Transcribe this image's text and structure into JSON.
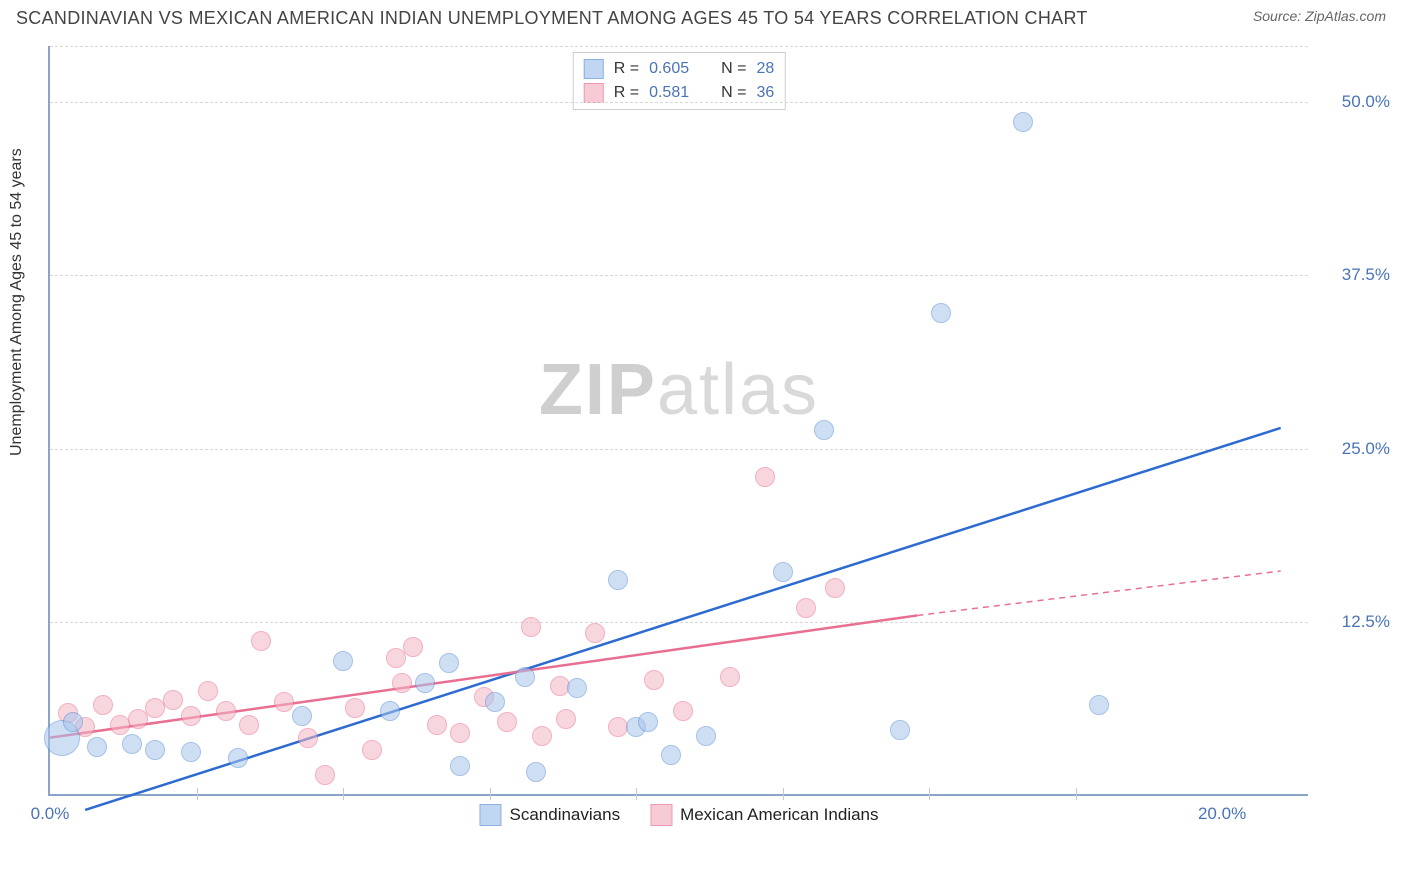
{
  "title": "SCANDINAVIAN VS MEXICAN AMERICAN INDIAN UNEMPLOYMENT AMONG AGES 45 TO 54 YEARS CORRELATION CHART",
  "source": "Source: ZipAtlas.com",
  "watermark_bold": "ZIP",
  "watermark_light": "atlas",
  "chart": {
    "type": "scatter",
    "ylabel": "Unemployment Among Ages 45 to 54 years",
    "background_color": "#ffffff",
    "grid_color": "#d8d8d8",
    "axis_color": "#8aa4c8",
    "tick_font_color": "#4a74b8",
    "tick_fontsize": 17,
    "label_fontsize": 16,
    "title_fontsize": 18,
    "xlim": [
      0,
      21.5
    ],
    "ylim": [
      0,
      54
    ],
    "xticks": [
      {
        "pos": 0.0,
        "label": "0.0%"
      },
      {
        "pos": 20.0,
        "label": "20.0%"
      }
    ],
    "xgrid_ticks": [
      2.5,
      5.0,
      7.5,
      10.0,
      12.5,
      15.0,
      17.5
    ],
    "yticks": [
      {
        "pos": 12.5,
        "label": "12.5%"
      },
      {
        "pos": 25.0,
        "label": "25.0%"
      },
      {
        "pos": 37.5,
        "label": "37.5%"
      },
      {
        "pos": 50.0,
        "label": "50.0%"
      }
    ],
    "series": [
      {
        "name": "Scandinavians",
        "fill": "#a8c5eb",
        "stroke": "#5b8fd6",
        "fill_opacity": 0.55,
        "line_color": "#2e6bd0",
        "line_width": 2.5,
        "marker_r": 10,
        "R": "0.605",
        "N": "28",
        "trend": {
          "x1": 0.6,
          "y1": -1.0,
          "x2": 21.0,
          "y2": 26.5,
          "dash_from_x": 21.0
        },
        "points": [
          {
            "x": 0.2,
            "y": 4.0,
            "r": 18
          },
          {
            "x": 0.4,
            "y": 5.2
          },
          {
            "x": 0.8,
            "y": 3.4
          },
          {
            "x": 1.4,
            "y": 3.6
          },
          {
            "x": 1.8,
            "y": 3.2
          },
          {
            "x": 2.4,
            "y": 3.0
          },
          {
            "x": 3.2,
            "y": 2.6
          },
          {
            "x": 4.3,
            "y": 5.6
          },
          {
            "x": 5.0,
            "y": 9.6
          },
          {
            "x": 5.8,
            "y": 6.0
          },
          {
            "x": 6.4,
            "y": 8.0
          },
          {
            "x": 7.0,
            "y": 2.0
          },
          {
            "x": 7.6,
            "y": 6.6
          },
          {
            "x": 8.1,
            "y": 8.4
          },
          {
            "x": 8.3,
            "y": 1.6
          },
          {
            "x": 9.0,
            "y": 7.6
          },
          {
            "x": 9.7,
            "y": 15.4
          },
          {
            "x": 10.0,
            "y": 4.8
          },
          {
            "x": 10.6,
            "y": 2.8
          },
          {
            "x": 11.2,
            "y": 4.2
          },
          {
            "x": 12.5,
            "y": 16.0
          },
          {
            "x": 13.2,
            "y": 26.2
          },
          {
            "x": 14.5,
            "y": 4.6
          },
          {
            "x": 15.2,
            "y": 34.6
          },
          {
            "x": 16.6,
            "y": 48.4
          },
          {
            "x": 17.9,
            "y": 6.4
          },
          {
            "x": 10.2,
            "y": 5.2
          },
          {
            "x": 6.8,
            "y": 9.4
          }
        ]
      },
      {
        "name": "Mexican American Indians",
        "fill": "#f4b6c4",
        "stroke": "#e86f92",
        "fill_opacity": 0.55,
        "line_color": "#e86f92",
        "line_width": 2.5,
        "marker_r": 10,
        "R": "0.581",
        "N": "36",
        "trend": {
          "x1": 0.0,
          "y1": 4.2,
          "x2": 14.8,
          "y2": 13.0,
          "dash_from_x": 14.8,
          "x3": 21.0,
          "y3": 16.2
        },
        "points": [
          {
            "x": 0.3,
            "y": 5.8
          },
          {
            "x": 0.6,
            "y": 4.8
          },
          {
            "x": 0.9,
            "y": 6.4
          },
          {
            "x": 1.2,
            "y": 5.0
          },
          {
            "x": 1.5,
            "y": 5.4
          },
          {
            "x": 1.8,
            "y": 6.2
          },
          {
            "x": 2.1,
            "y": 6.8
          },
          {
            "x": 2.4,
            "y": 5.6
          },
          {
            "x": 2.7,
            "y": 7.4
          },
          {
            "x": 3.0,
            "y": 6.0
          },
          {
            "x": 3.4,
            "y": 5.0
          },
          {
            "x": 3.6,
            "y": 11.0
          },
          {
            "x": 4.0,
            "y": 6.6
          },
          {
            "x": 4.4,
            "y": 4.0
          },
          {
            "x": 4.7,
            "y": 1.4
          },
          {
            "x": 5.2,
            "y": 6.2
          },
          {
            "x": 5.5,
            "y": 3.2
          },
          {
            "x": 5.9,
            "y": 9.8
          },
          {
            "x": 6.2,
            "y": 10.6
          },
          {
            "x": 6.6,
            "y": 5.0
          },
          {
            "x": 7.0,
            "y": 4.4
          },
          {
            "x": 7.4,
            "y": 7.0
          },
          {
            "x": 7.8,
            "y": 5.2
          },
          {
            "x": 8.2,
            "y": 12.0
          },
          {
            "x": 8.7,
            "y": 7.8
          },
          {
            "x": 8.8,
            "y": 5.4
          },
          {
            "x": 9.3,
            "y": 11.6
          },
          {
            "x": 9.7,
            "y": 4.8
          },
          {
            "x": 10.3,
            "y": 8.2
          },
          {
            "x": 10.8,
            "y": 6.0
          },
          {
            "x": 11.6,
            "y": 8.4
          },
          {
            "x": 12.2,
            "y": 22.8
          },
          {
            "x": 12.9,
            "y": 13.4
          },
          {
            "x": 13.4,
            "y": 14.8
          },
          {
            "x": 8.4,
            "y": 4.2
          },
          {
            "x": 6.0,
            "y": 8.0
          }
        ]
      }
    ],
    "legend_top": {
      "R_label": "R =",
      "N_label": "N ="
    },
    "legend_bottom_labels": [
      "Scandinavians",
      "Mexican American Indians"
    ]
  }
}
